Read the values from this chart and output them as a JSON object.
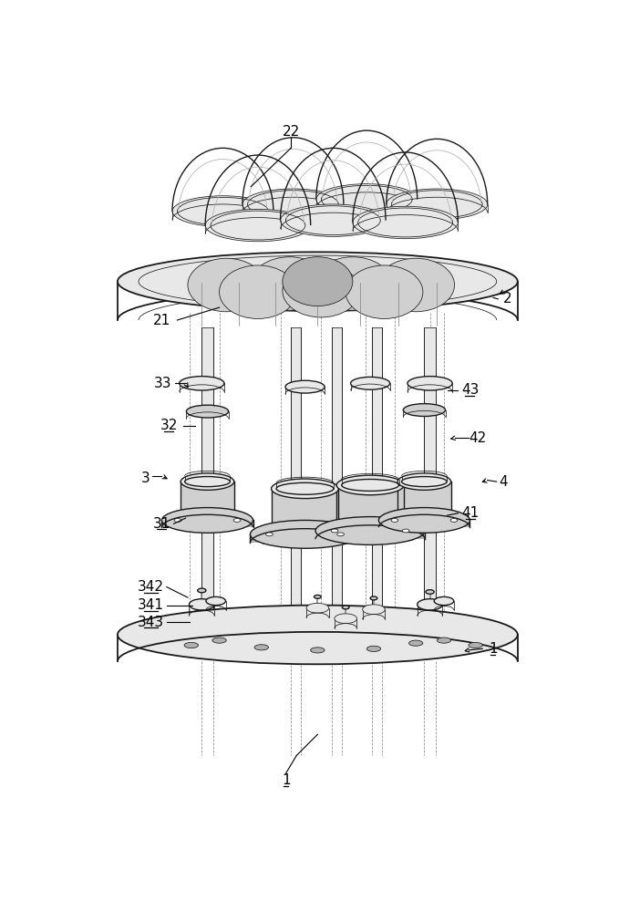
{
  "bg_color": "#ffffff",
  "lc": "#1a1a1a",
  "gray1": "#e8e8e8",
  "gray2": "#d0d0d0",
  "gray3": "#b0b0b0",
  "gray4": "#888888",
  "gray5": "#f4f4f4",
  "lw_main": 1.0,
  "lw_thin": 0.55,
  "lw_thick": 1.3,
  "figw": 6.79,
  "figh": 10.0,
  "dpi": 100
}
